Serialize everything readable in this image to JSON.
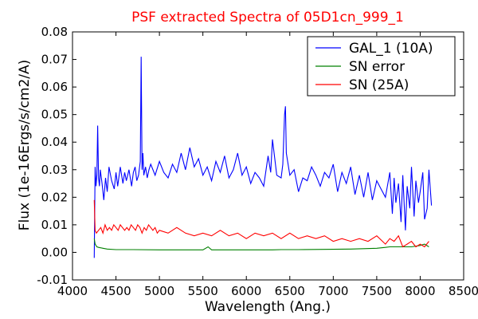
{
  "chart_data": {
    "type": "line",
    "title": "PSF extracted Spectra of 05D1cn_999_1",
    "title_color": "#ff0000",
    "xlabel": "Wavelength (Ang.)",
    "ylabel": "Flux (1e-16Ergs/s/cm2/A)",
    "xlim": [
      4000,
      8500
    ],
    "ylim": [
      -0.01,
      0.08
    ],
    "xticks": [
      4000,
      4500,
      5000,
      5500,
      6000,
      6500,
      7000,
      7500,
      8000,
      8500
    ],
    "yticks": [
      -0.01,
      0.0,
      0.01,
      0.02,
      0.03,
      0.04,
      0.05,
      0.06,
      0.07,
      0.08
    ],
    "xtick_labels": [
      "4000",
      "4500",
      "5000",
      "5500",
      "6000",
      "6500",
      "7000",
      "7500",
      "8000",
      "8500"
    ],
    "ytick_labels": [
      "-0.01",
      "0.00",
      "0.01",
      "0.02",
      "0.03",
      "0.04",
      "0.05",
      "0.06",
      "0.07",
      "0.08"
    ],
    "grid": false,
    "legend_position": "top-right",
    "series": [
      {
        "name": "GAL_1 (10A)",
        "color": "#0000ff",
        "x": [
          4250,
          4260,
          4270,
          4280,
          4290,
          4300,
          4310,
          4320,
          4340,
          4360,
          4380,
          4400,
          4420,
          4450,
          4480,
          4500,
          4520,
          4550,
          4580,
          4600,
          4620,
          4650,
          4680,
          4700,
          4720,
          4740,
          4760,
          4780,
          4790,
          4800,
          4810,
          4820,
          4840,
          4860,
          4880,
          4900,
          4950,
          5000,
          5050,
          5100,
          5150,
          5200,
          5250,
          5300,
          5350,
          5400,
          5450,
          5500,
          5550,
          5600,
          5650,
          5700,
          5750,
          5800,
          5850,
          5900,
          5950,
          6000,
          6050,
          6100,
          6150,
          6200,
          6250,
          6280,
          6300,
          6350,
          6400,
          6420,
          6440,
          6450,
          6460,
          6500,
          6550,
          6600,
          6650,
          6700,
          6750,
          6800,
          6850,
          6900,
          6950,
          7000,
          7050,
          7100,
          7150,
          7200,
          7250,
          7300,
          7350,
          7400,
          7450,
          7500,
          7550,
          7600,
          7650,
          7680,
          7700,
          7720,
          7750,
          7780,
          7800,
          7830,
          7850,
          7880,
          7900,
          7930,
          7950,
          7980,
          8000,
          8030,
          8050,
          8080,
          8100,
          8130
        ],
        "y": [
          -0.002,
          0.031,
          0.024,
          0.028,
          0.046,
          0.027,
          0.024,
          0.03,
          0.025,
          0.019,
          0.027,
          0.022,
          0.031,
          0.026,
          0.023,
          0.029,
          0.024,
          0.031,
          0.025,
          0.029,
          0.026,
          0.03,
          0.024,
          0.029,
          0.031,
          0.026,
          0.028,
          0.033,
          0.071,
          0.03,
          0.036,
          0.028,
          0.031,
          0.027,
          0.03,
          0.032,
          0.028,
          0.033,
          0.029,
          0.027,
          0.032,
          0.029,
          0.036,
          0.03,
          0.038,
          0.031,
          0.034,
          0.028,
          0.031,
          0.026,
          0.033,
          0.029,
          0.035,
          0.027,
          0.03,
          0.036,
          0.028,
          0.031,
          0.025,
          0.029,
          0.027,
          0.024,
          0.035,
          0.029,
          0.041,
          0.028,
          0.027,
          0.032,
          0.05,
          0.053,
          0.036,
          0.028,
          0.03,
          0.022,
          0.027,
          0.026,
          0.031,
          0.028,
          0.024,
          0.029,
          0.027,
          0.032,
          0.022,
          0.029,
          0.025,
          0.031,
          0.021,
          0.028,
          0.02,
          0.029,
          0.019,
          0.026,
          0.023,
          0.02,
          0.029,
          0.014,
          0.027,
          0.018,
          0.025,
          0.011,
          0.028,
          0.008,
          0.024,
          0.016,
          0.031,
          0.013,
          0.026,
          0.018,
          0.022,
          0.029,
          0.012,
          0.016,
          0.03,
          0.017
        ]
      },
      {
        "name": "SN error",
        "color": "#008000",
        "x": [
          4250,
          4260,
          4280,
          4300,
          4350,
          4400,
          4500,
          4700,
          5000,
          5500,
          5560,
          5600,
          6000,
          6300,
          6400,
          6600,
          7000,
          7200,
          7500,
          7600,
          7650,
          7800,
          7900,
          8000,
          8050,
          8100
        ],
        "y": [
          0.005,
          0.003,
          0.002,
          0.0018,
          0.0015,
          0.0012,
          0.001,
          0.001,
          0.0009,
          0.0009,
          0.002,
          0.0009,
          0.0009,
          0.0009,
          0.001,
          0.001,
          0.0011,
          0.0012,
          0.0015,
          0.0018,
          0.002,
          0.002,
          0.002,
          0.0025,
          0.003,
          0.002
        ]
      },
      {
        "name": "SN (25A)",
        "color": "#ff0000",
        "x": [
          4250,
          4260,
          4275,
          4300,
          4325,
          4350,
          4375,
          4400,
          4425,
          4450,
          4475,
          4500,
          4525,
          4550,
          4575,
          4600,
          4625,
          4650,
          4675,
          4700,
          4725,
          4750,
          4775,
          4800,
          4825,
          4850,
          4875,
          4900,
          4925,
          4950,
          4975,
          5000,
          5100,
          5200,
          5300,
          5400,
          5500,
          5600,
          5700,
          5800,
          5900,
          6000,
          6100,
          6200,
          6300,
          6400,
          6500,
          6600,
          6700,
          6800,
          6900,
          7000,
          7100,
          7200,
          7300,
          7400,
          7500,
          7600,
          7650,
          7700,
          7750,
          7800,
          7850,
          7900,
          7950,
          8000,
          8050,
          8100
        ],
        "y": [
          0.019,
          0.008,
          0.007,
          0.008,
          0.009,
          0.007,
          0.01,
          0.008,
          0.009,
          0.008,
          0.01,
          0.009,
          0.008,
          0.01,
          0.009,
          0.008,
          0.009,
          0.008,
          0.01,
          0.009,
          0.008,
          0.01,
          0.009,
          0.007,
          0.009,
          0.008,
          0.01,
          0.009,
          0.008,
          0.009,
          0.007,
          0.008,
          0.007,
          0.009,
          0.007,
          0.006,
          0.007,
          0.006,
          0.008,
          0.006,
          0.007,
          0.005,
          0.007,
          0.006,
          0.007,
          0.005,
          0.007,
          0.005,
          0.006,
          0.005,
          0.006,
          0.004,
          0.005,
          0.004,
          0.005,
          0.004,
          0.006,
          0.003,
          0.005,
          0.004,
          0.006,
          0.002,
          0.003,
          0.004,
          0.002,
          0.003,
          0.002,
          0.004
        ]
      }
    ]
  }
}
